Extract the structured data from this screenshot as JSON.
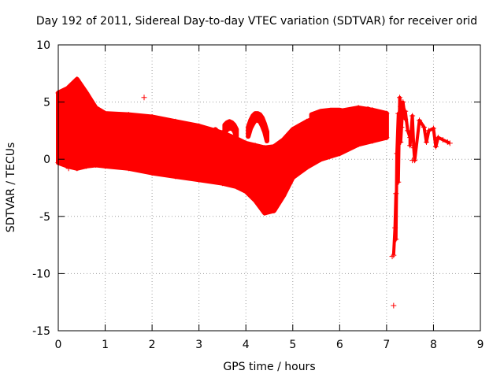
{
  "chart_data": {
    "type": "scatter",
    "title": "Day 192 of 2011, Sidereal Day-to-day VTEC variation (SDTVAR) for receiver orid",
    "xlabel": "GPS time / hours",
    "ylabel": "SDTVAR / TECUs",
    "xlim": [
      0,
      9
    ],
    "ylim": [
      -15,
      10
    ],
    "xticks": [
      0,
      1,
      2,
      3,
      4,
      5,
      6,
      7,
      8,
      9
    ],
    "xtick_labels": [
      "0",
      "1",
      "2",
      "3",
      "4",
      "5",
      "6",
      "7",
      "8",
      "9"
    ],
    "yticks": [
      -15,
      -10,
      -5,
      0,
      5,
      10
    ],
    "ytick_labels": [
      "-15",
      "-10",
      "-5",
      "0",
      "5",
      "10"
    ],
    "grid": true,
    "series": [
      {
        "name": "SDTVAR",
        "color": "#ff0000",
        "marker": "+",
        "band": {
          "x": [
            0.0,
            0.2,
            0.4,
            0.6,
            0.8,
            1.0,
            1.5,
            2.0,
            2.5,
            3.0,
            3.5,
            3.8,
            4.0,
            4.2,
            4.4,
            4.6,
            4.8,
            5.0,
            5.3,
            5.6,
            6.0,
            6.4,
            6.7,
            7.0
          ],
          "upper": [
            5.8,
            6.2,
            7.0,
            5.8,
            4.5,
            4.0,
            3.9,
            3.7,
            3.3,
            2.9,
            2.3,
            1.8,
            1.4,
            1.2,
            1.0,
            1.1,
            1.7,
            2.6,
            3.3,
            3.8,
            4.2,
            4.5,
            4.3,
            4.0
          ],
          "lower": [
            -0.3,
            -0.6,
            -0.8,
            -0.6,
            -0.5,
            -0.6,
            -0.8,
            -1.2,
            -1.5,
            -1.8,
            -2.1,
            -2.4,
            -2.8,
            -3.6,
            -4.7,
            -4.5,
            -3.2,
            -1.6,
            -0.7,
            0.0,
            0.5,
            1.3,
            1.6,
            1.9
          ]
        },
        "bumps": [
          {
            "x": [
              3.55,
              3.6,
              3.65,
              3.7,
              3.75,
              3.8
            ],
            "upper": [
              3.0,
              3.2,
              3.3,
              3.2,
              3.0,
              2.6
            ],
            "lower": [
              2.3,
              2.6,
              2.7,
              2.7,
              2.5,
              2.0
            ]
          },
          {
            "x": [
              4.05,
              4.1,
              4.15,
              4.2,
              4.25,
              4.3,
              4.35,
              4.4,
              4.45
            ],
            "upper": [
              2.8,
              3.4,
              3.8,
              4.0,
              4.0,
              3.9,
              3.6,
              3.1,
              2.4
            ],
            "lower": [
              2.0,
              2.7,
              3.1,
              3.4,
              3.4,
              3.3,
              2.9,
              2.4,
              1.6
            ]
          },
          {
            "x": [
              5.4,
              5.6,
              5.8,
              6.0,
              6.2,
              6.4,
              6.6,
              6.7
            ],
            "upper": [
              3.9,
              4.2,
              4.3,
              4.3,
              4.1,
              3.9,
              4.4,
              4.2
            ],
            "lower": [
              3.2,
              3.5,
              3.6,
              3.6,
              3.4,
              3.2,
              3.7,
              3.5
            ]
          },
          {
            "x": [
              3.35,
              3.4,
              3.45,
              3.5,
              3.55
            ],
            "upper": [
              2.6,
              2.4,
              2.2,
              1.9,
              1.6
            ],
            "lower": [
              1.9,
              1.7,
              1.5,
              1.2,
              0.8
            ]
          }
        ],
        "tail_points": [
          [
            7.15,
            -8.4
          ],
          [
            7.18,
            -6.0
          ],
          [
            7.2,
            -3.0
          ],
          [
            7.22,
            0.5
          ],
          [
            7.25,
            4.0
          ],
          [
            7.28,
            5.4
          ],
          [
            7.3,
            4.6
          ],
          [
            7.32,
            2.8
          ],
          [
            7.35,
            5.0
          ],
          [
            7.4,
            3.5
          ],
          [
            7.45,
            2.5
          ],
          [
            7.5,
            1.9
          ],
          [
            7.55,
            3.8
          ],
          [
            7.58,
            1.0
          ],
          [
            7.6,
            -0.1
          ],
          [
            7.7,
            3.4
          ],
          [
            7.8,
            2.8
          ],
          [
            7.9,
            2.5
          ],
          [
            8.0,
            2.7
          ],
          [
            8.1,
            1.9
          ],
          [
            8.2,
            1.7
          ],
          [
            8.3,
            1.5
          ],
          [
            8.35,
            1.4
          ],
          [
            7.2,
            -7.0
          ],
          [
            7.25,
            -2.0
          ],
          [
            7.3,
            1.5
          ],
          [
            7.4,
            4.2
          ],
          [
            7.5,
            1.2
          ],
          [
            7.85,
            1.5
          ],
          [
            8.05,
            1.1
          ]
        ],
        "outliers": [
          [
            1.83,
            5.4
          ],
          [
            0.22,
            -0.8
          ],
          [
            7.15,
            -12.8
          ],
          [
            7.12,
            -8.5
          ],
          [
            7.55,
            -0.1
          ]
        ]
      }
    ]
  }
}
